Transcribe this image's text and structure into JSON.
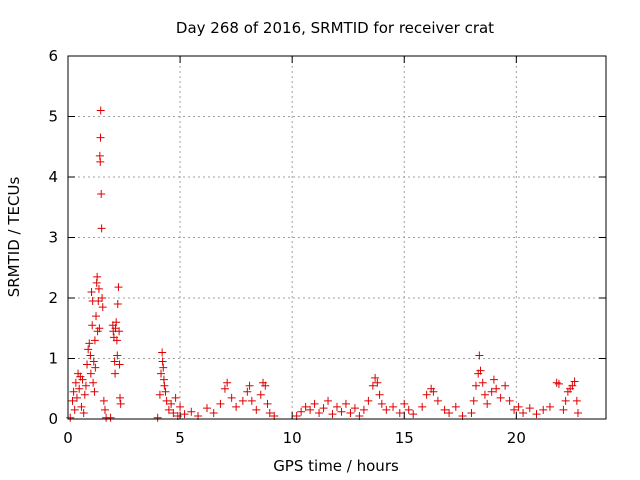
{
  "chart_data": {
    "type": "scatter",
    "title": "Day 268 of 2016, SRMTID for receiver crat",
    "xlabel": "GPS time / hours",
    "ylabel": "SRMTID / TECUs",
    "xlim": [
      0,
      24
    ],
    "ylim": [
      0,
      6
    ],
    "xticks": [
      0,
      5,
      10,
      15,
      20
    ],
    "yticks": [
      0,
      1,
      2,
      3,
      4,
      5,
      6
    ],
    "grid": true,
    "marker": "+",
    "color": "#dd0000",
    "series": [
      {
        "name": "SRMTID",
        "points": [
          [
            0.1,
            0.02
          ],
          [
            0.2,
            0.3
          ],
          [
            0.25,
            0.45
          ],
          [
            0.3,
            0.15
          ],
          [
            0.35,
            0.6
          ],
          [
            0.4,
            0.35
          ],
          [
            0.45,
            0.75
          ],
          [
            0.5,
            0.5
          ],
          [
            0.55,
            0.7
          ],
          [
            0.6,
            0.2
          ],
          [
            0.65,
            0.65
          ],
          [
            0.7,
            0.1
          ],
          [
            0.75,
            0.4
          ],
          [
            0.8,
            0.55
          ],
          [
            0.85,
            0.9
          ],
          [
            0.9,
            1.15
          ],
          [
            0.95,
            1.25
          ],
          [
            1.0,
            1.05
          ],
          [
            1.02,
            0.75
          ],
          [
            1.05,
            2.1
          ],
          [
            1.08,
            1.55
          ],
          [
            1.1,
            1.95
          ],
          [
            1.12,
            0.6
          ],
          [
            1.15,
            0.95
          ],
          [
            1.18,
            0.45
          ],
          [
            1.2,
            1.3
          ],
          [
            1.22,
            0.85
          ],
          [
            1.25,
            1.7
          ],
          [
            1.28,
            2.25
          ],
          [
            1.3,
            2.35
          ],
          [
            1.32,
            1.45
          ],
          [
            1.35,
            1.95
          ],
          [
            1.38,
            2.15
          ],
          [
            1.4,
            1.5
          ],
          [
            1.42,
            4.35
          ],
          [
            1.44,
            4.25
          ],
          [
            1.45,
            4.65
          ],
          [
            1.46,
            5.1
          ],
          [
            1.48,
            3.72
          ],
          [
            1.5,
            3.15
          ],
          [
            1.52,
            2.0
          ],
          [
            1.55,
            1.85
          ],
          [
            1.6,
            0.3
          ],
          [
            1.65,
            0.15
          ],
          [
            1.7,
            0.02
          ],
          [
            1.9,
            0.02
          ],
          [
            2.0,
            1.55
          ],
          [
            2.02,
            1.45
          ],
          [
            2.05,
            1.35
          ],
          [
            2.08,
            0.95
          ],
          [
            2.1,
            0.75
          ],
          [
            2.12,
            1.5
          ],
          [
            2.15,
            1.6
          ],
          [
            2.18,
            1.3
          ],
          [
            2.2,
            1.05
          ],
          [
            2.22,
            1.9
          ],
          [
            2.25,
            2.18
          ],
          [
            2.28,
            1.45
          ],
          [
            2.3,
            0.9
          ],
          [
            2.32,
            0.35
          ],
          [
            2.35,
            0.25
          ],
          [
            4.0,
            0.02
          ],
          [
            4.1,
            0.4
          ],
          [
            4.15,
            0.75
          ],
          [
            4.2,
            1.1
          ],
          [
            4.22,
            0.95
          ],
          [
            4.25,
            0.85
          ],
          [
            4.28,
            0.65
          ],
          [
            4.3,
            0.55
          ],
          [
            4.35,
            0.45
          ],
          [
            4.4,
            0.3
          ],
          [
            4.5,
            0.15
          ],
          [
            4.6,
            0.25
          ],
          [
            4.7,
            0.1
          ],
          [
            4.8,
            0.35
          ],
          [
            4.9,
            0.05
          ],
          [
            5.0,
            0.2
          ],
          [
            5.2,
            0.08
          ],
          [
            5.5,
            0.12
          ],
          [
            5.8,
            0.05
          ],
          [
            6.2,
            0.18
          ],
          [
            6.5,
            0.1
          ],
          [
            6.8,
            0.25
          ],
          [
            7.0,
            0.5
          ],
          [
            7.1,
            0.6
          ],
          [
            7.3,
            0.35
          ],
          [
            7.5,
            0.2
          ],
          [
            7.8,
            0.3
          ],
          [
            8.0,
            0.45
          ],
          [
            8.1,
            0.55
          ],
          [
            8.2,
            0.3
          ],
          [
            8.4,
            0.15
          ],
          [
            8.6,
            0.4
          ],
          [
            8.7,
            0.6
          ],
          [
            8.8,
            0.55
          ],
          [
            8.9,
            0.25
          ],
          [
            9.0,
            0.1
          ],
          [
            9.2,
            0.05
          ],
          [
            10.2,
            0.05
          ],
          [
            10.4,
            0.12
          ],
          [
            10.6,
            0.2
          ],
          [
            10.8,
            0.15
          ],
          [
            11.0,
            0.25
          ],
          [
            11.2,
            0.1
          ],
          [
            11.4,
            0.18
          ],
          [
            11.6,
            0.3
          ],
          [
            11.8,
            0.08
          ],
          [
            12.0,
            0.2
          ],
          [
            12.2,
            0.12
          ],
          [
            12.4,
            0.25
          ],
          [
            12.6,
            0.1
          ],
          [
            12.8,
            0.18
          ],
          [
            13.0,
            0.05
          ],
          [
            13.2,
            0.15
          ],
          [
            13.4,
            0.3
          ],
          [
            13.6,
            0.55
          ],
          [
            13.7,
            0.68
          ],
          [
            13.8,
            0.6
          ],
          [
            13.9,
            0.4
          ],
          [
            14.0,
            0.25
          ],
          [
            14.2,
            0.15
          ],
          [
            14.5,
            0.2
          ],
          [
            14.8,
            0.1
          ],
          [
            15.0,
            0.25
          ],
          [
            15.2,
            0.15
          ],
          [
            15.4,
            0.08
          ],
          [
            15.8,
            0.2
          ],
          [
            16.0,
            0.4
          ],
          [
            16.2,
            0.5
          ],
          [
            16.3,
            0.45
          ],
          [
            16.5,
            0.3
          ],
          [
            16.8,
            0.15
          ],
          [
            17.0,
            0.1
          ],
          [
            17.3,
            0.2
          ],
          [
            17.6,
            0.05
          ],
          [
            18.0,
            0.1
          ],
          [
            18.1,
            0.3
          ],
          [
            18.2,
            0.55
          ],
          [
            18.3,
            0.75
          ],
          [
            18.35,
            1.05
          ],
          [
            18.4,
            0.8
          ],
          [
            18.5,
            0.6
          ],
          [
            18.6,
            0.4
          ],
          [
            18.7,
            0.25
          ],
          [
            18.9,
            0.45
          ],
          [
            19.0,
            0.65
          ],
          [
            19.1,
            0.5
          ],
          [
            19.3,
            0.35
          ],
          [
            19.5,
            0.55
          ],
          [
            19.7,
            0.3
          ],
          [
            19.9,
            0.15
          ],
          [
            20.1,
            0.2
          ],
          [
            20.3,
            0.1
          ],
          [
            20.6,
            0.18
          ],
          [
            20.9,
            0.08
          ],
          [
            21.2,
            0.15
          ],
          [
            21.5,
            0.2
          ],
          [
            21.8,
            0.6
          ],
          [
            21.9,
            0.58
          ],
          [
            22.1,
            0.15
          ],
          [
            22.2,
            0.3
          ],
          [
            22.3,
            0.45
          ],
          [
            22.4,
            0.5
          ],
          [
            22.5,
            0.55
          ],
          [
            22.6,
            0.62
          ],
          [
            22.7,
            0.3
          ],
          [
            22.75,
            0.1
          ]
        ]
      }
    ]
  }
}
